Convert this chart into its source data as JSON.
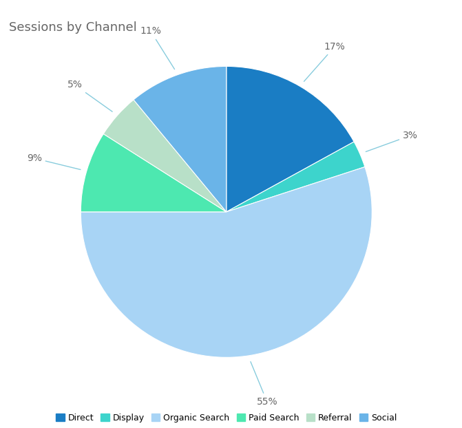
{
  "title": "Sessions by Channel",
  "labels": [
    "Direct",
    "Display",
    "Organic Search",
    "Paid Search",
    "Referral",
    "Social"
  ],
  "values": [
    17,
    3,
    55,
    9,
    5,
    11
  ],
  "colors": [
    "#1a7dc4",
    "#3dd4cc",
    "#a8d4f5",
    "#4de8b0",
    "#b8e0c8",
    "#6ab4e8"
  ],
  "pct_labels": [
    "17%",
    "3%",
    "55%",
    "9%",
    "5%",
    "11%"
  ],
  "title_fontsize": 13,
  "title_color": "#666666",
  "background_color": "#ffffff",
  "legend_fontsize": 9,
  "leader_line_color": "#88ccdd"
}
